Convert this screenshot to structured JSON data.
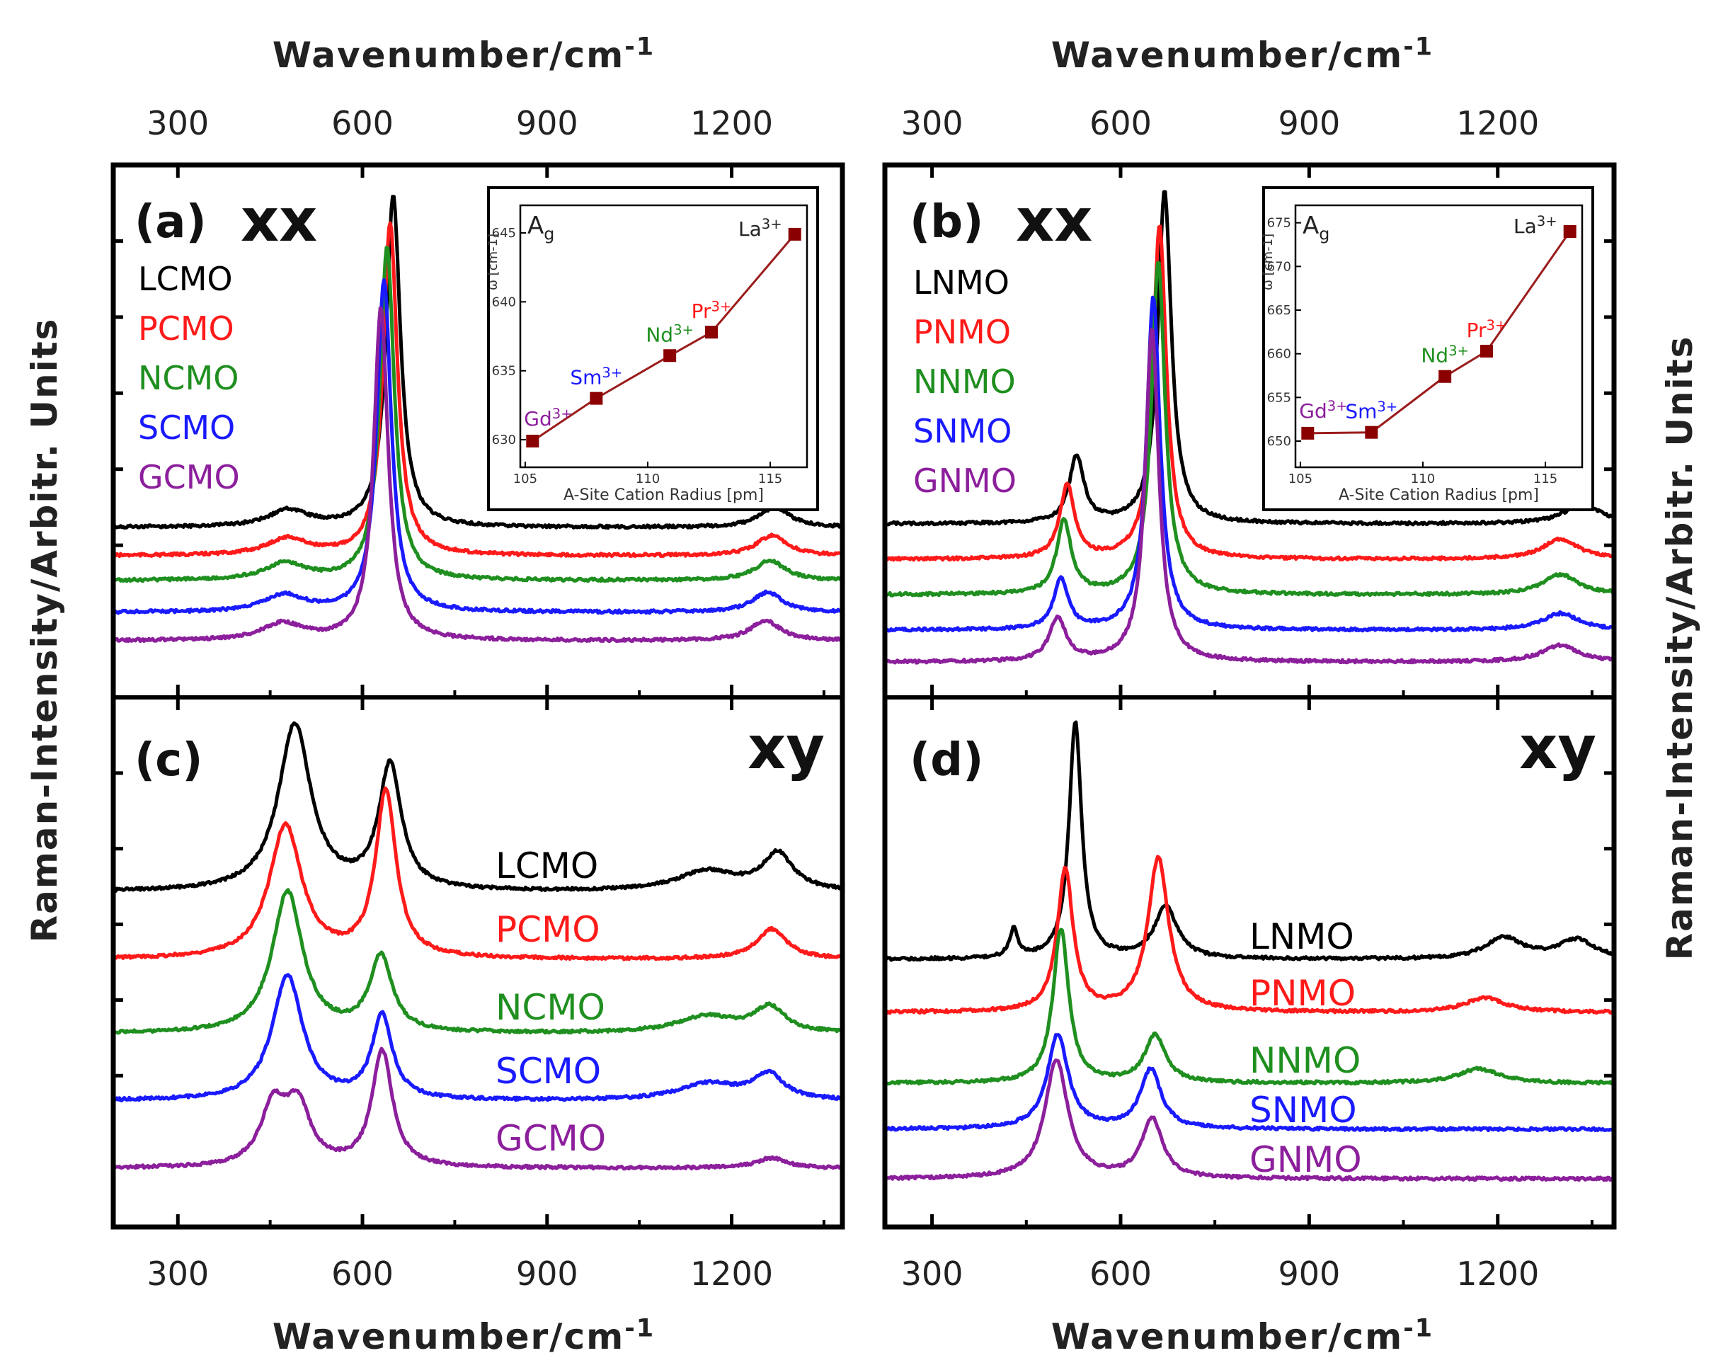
{
  "figure": {
    "top_axis_label": "Wavenumber/cm-1",
    "bottom_axis_label": "Wavenumber/cm-1",
    "y_axis_label": "Raman-Intensity/Arbitr. Units",
    "colors": {
      "black": "#000000",
      "red": "#ff1a1a",
      "green": "#1f8f1f",
      "blue": "#1a1aff",
      "purple": "#8c1f9c",
      "inset_line": "#9b1c1c",
      "inset_marker": "#8b0000"
    }
  },
  "chart_data": [
    {
      "id": "a",
      "type": "line",
      "panel_label": "(a)",
      "polarization": "xx",
      "x_ticks": [
        300,
        600,
        900,
        1200
      ],
      "xlim": [
        195,
        1380
      ],
      "series": [
        {
          "name": "LCMO",
          "color": "#000000",
          "peaks": [
            [
              480,
              0.05,
              40
            ],
            [
              650,
              1.0,
              14
            ],
            [
              1270,
              0.06,
              30
            ]
          ]
        },
        {
          "name": "PCMO",
          "color": "#ff1a1a",
          "peaks": [
            [
              478,
              0.05,
              40
            ],
            [
              645,
              1.0,
              14
            ],
            [
              1265,
              0.06,
              30
            ]
          ]
        },
        {
          "name": "NCMO",
          "color": "#1f8f1f",
          "peaks": [
            [
              475,
              0.05,
              40
            ],
            [
              640,
              1.0,
              14
            ],
            [
              1262,
              0.06,
              30
            ]
          ]
        },
        {
          "name": "SCMO",
          "color": "#1a1aff",
          "peaks": [
            [
              473,
              0.05,
              40
            ],
            [
              635,
              1.0,
              14
            ],
            [
              1258,
              0.06,
              30
            ]
          ]
        },
        {
          "name": "GCMO",
          "color": "#8c1f9c",
          "peaks": [
            [
              470,
              0.05,
              40
            ],
            [
              630,
              1.0,
              14
            ],
            [
              1255,
              0.06,
              30
            ]
          ]
        }
      ],
      "inset": {
        "type": "line",
        "title": "Ag",
        "xlabel": "A-Site Cation Radius [pm]",
        "ylabel": "ω [cm-1]",
        "x_ticks": [
          105,
          110,
          115
        ],
        "y_ticks": [
          630,
          635,
          640,
          645
        ],
        "xlim": [
          104.8,
          116.5
        ],
        "ylim": [
          628,
          647
        ],
        "points": [
          {
            "ion": "Gd3+",
            "x": 105.3,
            "y": 629.9,
            "color": "#8c1f9c"
          },
          {
            "ion": "Sm3+",
            "x": 107.9,
            "y": 633.0,
            "color": "#1a1aff"
          },
          {
            "ion": "Nd3+",
            "x": 110.9,
            "y": 636.1,
            "color": "#1f8f1f"
          },
          {
            "ion": "Pr3+",
            "x": 112.6,
            "y": 637.8,
            "color": "#ff1a1a"
          },
          {
            "ion": "La3+",
            "x": 116.0,
            "y": 644.9,
            "color": "#222222"
          }
        ]
      }
    },
    {
      "id": "b",
      "type": "line",
      "panel_label": "(b)",
      "polarization": "xx",
      "x_ticks": [
        300,
        600,
        900,
        1200
      ],
      "xlim": [
        225,
        1385
      ],
      "series": [
        {
          "name": "LNMO",
          "color": "#000000",
          "peaks": [
            [
              530,
              0.2,
              14
            ],
            [
              670,
              1.0,
              13
            ],
            [
              1335,
              0.06,
              35
            ]
          ]
        },
        {
          "name": "PNMO",
          "color": "#ff1a1a",
          "peaks": [
            [
              515,
              0.22,
              14
            ],
            [
              662,
              1.0,
              13
            ],
            [
              1300,
              0.06,
              35
            ]
          ]
        },
        {
          "name": "NNMO",
          "color": "#1f8f1f",
          "peaks": [
            [
              510,
              0.22,
              14
            ],
            [
              660,
              1.0,
              13
            ],
            [
              1300,
              0.06,
              35
            ]
          ]
        },
        {
          "name": "SNMO",
          "color": "#1a1aff",
          "peaks": [
            [
              505,
              0.15,
              14
            ],
            [
              652,
              1.0,
              13
            ],
            [
              1300,
              0.05,
              35
            ]
          ]
        },
        {
          "name": "GNMO",
          "color": "#8c1f9c",
          "peaks": [
            [
              500,
              0.13,
              16
            ],
            [
              650,
              1.0,
              13
            ],
            [
              1300,
              0.05,
              35
            ]
          ]
        }
      ],
      "inset": {
        "type": "line",
        "title": "Ag",
        "xlabel": "A-Site Cation Radius [pm]",
        "ylabel": "ω [cm-1]",
        "x_ticks": [
          105,
          110,
          115
        ],
        "y_ticks": [
          650,
          655,
          660,
          665,
          670,
          675
        ],
        "xlim": [
          104.8,
          116.5
        ],
        "ylim": [
          647,
          677
        ],
        "points": [
          {
            "ion": "Gd3+",
            "x": 105.3,
            "y": 650.9,
            "color": "#8c1f9c"
          },
          {
            "ion": "Sm3+",
            "x": 107.9,
            "y": 651.0,
            "color": "#1a1aff"
          },
          {
            "ion": "Nd3+",
            "x": 110.9,
            "y": 657.4,
            "color": "#1f8f1f"
          },
          {
            "ion": "Pr3+",
            "x": 112.6,
            "y": 660.3,
            "color": "#ff1a1a"
          },
          {
            "ion": "La3+",
            "x": 116.0,
            "y": 674.0,
            "color": "#222222"
          }
        ]
      }
    },
    {
      "id": "c",
      "type": "line",
      "panel_label": "(c)",
      "polarization": "xy",
      "x_ticks": [
        300,
        600,
        900,
        1200
      ],
      "xlim": [
        195,
        1380
      ],
      "series": [
        {
          "name": "LCMO",
          "color": "#000000",
          "peaks": [
            [
              490,
              1.0,
              32
            ],
            [
              645,
              0.75,
              22
            ],
            [
              1160,
              0.12,
              60
            ],
            [
              1275,
              0.22,
              30
            ]
          ]
        },
        {
          "name": "PCMO",
          "color": "#ff1a1a",
          "peaks": [
            [
              475,
              0.8,
              32
            ],
            [
              638,
              1.0,
              20
            ],
            [
              1265,
              0.18,
              30
            ]
          ]
        },
        {
          "name": "NCMO",
          "color": "#1f8f1f",
          "peaks": [
            [
              478,
              0.85,
              30
            ],
            [
              630,
              0.45,
              22
            ],
            [
              1160,
              0.1,
              60
            ],
            [
              1262,
              0.15,
              30
            ]
          ]
        },
        {
          "name": "SCMO",
          "color": "#1a1aff",
          "peaks": [
            [
              478,
              0.75,
              30
            ],
            [
              632,
              0.5,
              20
            ],
            [
              1162,
              0.1,
              60
            ],
            [
              1260,
              0.15,
              30
            ]
          ]
        },
        {
          "name": "GCMO",
          "color": "#8c1f9c",
          "peaks": [
            [
              455,
              0.35,
              25
            ],
            [
              495,
              0.35,
              25
            ],
            [
              632,
              0.7,
              20
            ],
            [
              1265,
              0.06,
              30
            ]
          ]
        }
      ]
    },
    {
      "id": "d",
      "type": "line",
      "panel_label": "(d)",
      "polarization": "xy",
      "x_ticks": [
        300,
        600,
        900,
        1200
      ],
      "xlim": [
        225,
        1385
      ],
      "series": [
        {
          "name": "LNMO",
          "color": "#000000",
          "peaks": [
            [
              430,
              0.12,
              8
            ],
            [
              528,
              1.0,
              12
            ],
            [
              672,
              0.22,
              22
            ],
            [
              1210,
              0.09,
              35
            ],
            [
              1325,
              0.08,
              35
            ]
          ]
        },
        {
          "name": "PNMO",
          "color": "#ff1a1a",
          "peaks": [
            [
              512,
              0.6,
              15
            ],
            [
              660,
              0.65,
              20
            ],
            [
              1180,
              0.06,
              40
            ]
          ]
        },
        {
          "name": "NNMO",
          "color": "#1f8f1f",
          "peaks": [
            [
              505,
              0.65,
              15
            ],
            [
              655,
              0.2,
              20
            ],
            [
              1170,
              0.06,
              40
            ]
          ]
        },
        {
          "name": "SNMO",
          "color": "#1a1aff",
          "peaks": [
            [
              500,
              0.4,
              20
            ],
            [
              648,
              0.25,
              20
            ]
          ]
        },
        {
          "name": "GNMO",
          "color": "#8c1f9c",
          "peaks": [
            [
              498,
              0.5,
              22
            ],
            [
              650,
              0.25,
              20
            ]
          ]
        }
      ]
    }
  ]
}
